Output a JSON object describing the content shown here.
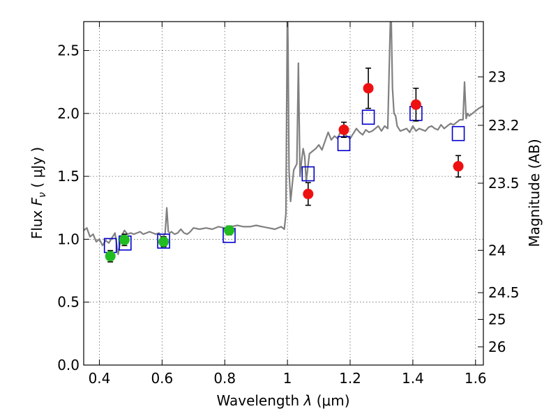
{
  "chart_data": {
    "type": "scatter",
    "xlabel_prefix": "Wavelength",
    "xlabel_symbol": "λ",
    "xlabel_unit": "(μm)",
    "ylabel_prefix": "Flux",
    "ylabel_symbol": "F",
    "ylabel_subscript": "ν",
    "ylabel_unit": "( μJy )",
    "y2label": "Magnitude (AB)",
    "xlim": [
      0.35,
      1.625
    ],
    "ylim": [
      0.0,
      2.73
    ],
    "grid": true,
    "x_ticks": [
      0.4,
      0.6,
      0.8,
      1.0,
      1.2,
      1.4,
      1.6
    ],
    "x_tick_labels": [
      "0.4",
      "0.6",
      "0.8",
      "1",
      "1.2",
      "1.4",
      "1.6"
    ],
    "y_ticks": [
      0.0,
      0.5,
      1.0,
      1.5,
      2.0,
      2.5
    ],
    "y_tick_labels": [
      "0.0",
      "0.5",
      "1.0",
      "1.5",
      "2.0",
      "2.5"
    ],
    "y2_ticks": [
      23,
      23.2,
      23.5,
      24,
      24.5,
      25,
      26
    ],
    "y2_tick_labels": [
      "23",
      "23.2",
      "23.5",
      "24",
      "24.5",
      "25",
      "26"
    ],
    "colors": {
      "spectrum": "#808080",
      "model": "#0000cc",
      "green_points": "#22bb22",
      "red_points": "#ee1111",
      "errorbar": "#000000"
    },
    "series": [
      {
        "kind": "line",
        "x": [
          0.35,
          0.36,
          0.37,
          0.38,
          0.39,
          0.4,
          0.41,
          0.42,
          0.43,
          0.44,
          0.45,
          0.46,
          0.47,
          0.48,
          0.49,
          0.5,
          0.51,
          0.52,
          0.53,
          0.54,
          0.55,
          0.56,
          0.57,
          0.58,
          0.59,
          0.6,
          0.61,
          0.615,
          0.62,
          0.625,
          0.63,
          0.64,
          0.65,
          0.66,
          0.67,
          0.68,
          0.69,
          0.7,
          0.72,
          0.74,
          0.76,
          0.78,
          0.8,
          0.82,
          0.84,
          0.86,
          0.88,
          0.9,
          0.92,
          0.94,
          0.96,
          0.98,
          0.99,
          0.995,
          1.0,
          1.002,
          1.005,
          1.01,
          1.02,
          1.03,
          1.035,
          1.04,
          1.045,
          1.05,
          1.055,
          1.06,
          1.07,
          1.08,
          1.09,
          1.1,
          1.11,
          1.12,
          1.13,
          1.14,
          1.15,
          1.16,
          1.17,
          1.18,
          1.19,
          1.2,
          1.21,
          1.22,
          1.23,
          1.24,
          1.25,
          1.26,
          1.27,
          1.28,
          1.29,
          1.3,
          1.31,
          1.32,
          1.33,
          1.335,
          1.34,
          1.345,
          1.35,
          1.36,
          1.37,
          1.38,
          1.39,
          1.4,
          1.41,
          1.42,
          1.43,
          1.44,
          1.45,
          1.46,
          1.47,
          1.48,
          1.49,
          1.5,
          1.51,
          1.52,
          1.53,
          1.54,
          1.55,
          1.56,
          1.565,
          1.57,
          1.575,
          1.58,
          1.59,
          1.6,
          1.61,
          1.625
        ],
        "y": [
          1.07,
          1.09,
          1.02,
          1.04,
          0.98,
          1.0,
          0.95,
          0.99,
          0.97,
          1.01,
          1.05,
          0.88,
          1.02,
          1.07,
          1.04,
          1.05,
          1.04,
          1.05,
          1.06,
          1.04,
          1.05,
          1.06,
          1.05,
          1.04,
          1.05,
          1.0,
          1.05,
          1.25,
          1.06,
          1.05,
          1.06,
          1.04,
          1.05,
          1.08,
          1.05,
          1.04,
          1.06,
          1.09,
          1.08,
          1.09,
          1.08,
          1.1,
          1.09,
          1.1,
          1.11,
          1.1,
          1.1,
          1.11,
          1.1,
          1.09,
          1.08,
          1.1,
          1.08,
          1.2,
          2.9,
          2.5,
          1.55,
          1.3,
          1.55,
          1.6,
          2.4,
          1.5,
          1.62,
          1.72,
          1.66,
          1.46,
          1.68,
          1.7,
          1.72,
          1.75,
          1.71,
          1.78,
          1.85,
          1.79,
          1.82,
          1.8,
          1.86,
          1.84,
          1.82,
          1.8,
          1.84,
          1.88,
          1.85,
          1.83,
          1.87,
          1.85,
          1.86,
          1.88,
          1.9,
          1.86,
          1.9,
          1.88,
          2.9,
          2.2,
          2.0,
          1.98,
          1.9,
          1.86,
          1.87,
          1.88,
          1.85,
          1.9,
          1.86,
          1.88,
          1.87,
          1.86,
          1.89,
          1.9,
          1.88,
          1.87,
          1.91,
          1.88,
          1.9,
          1.92,
          1.91,
          1.93,
          1.95,
          1.95,
          2.25,
          1.96,
          2.0,
          1.98,
          2.0,
          2.02,
          2.04,
          2.06
        ]
      },
      {
        "kind": "model-squares",
        "x": [
          0.435,
          0.482,
          0.605,
          0.814,
          1.066,
          1.18,
          1.258,
          1.41,
          1.545
        ],
        "y": [
          0.95,
          0.97,
          0.985,
          1.03,
          1.52,
          1.76,
          1.97,
          2.0,
          1.84
        ]
      },
      {
        "kind": "points-green",
        "x": [
          0.435,
          0.48,
          0.605,
          0.814
        ],
        "y": [
          0.865,
          0.995,
          0.98,
          1.07
        ],
        "yerr": [
          0.045,
          0.045,
          0.04,
          0.035
        ]
      },
      {
        "kind": "points-red",
        "x": [
          1.066,
          1.18,
          1.258,
          1.41,
          1.545
        ],
        "y": [
          1.36,
          1.87,
          2.2,
          2.07,
          1.58
        ],
        "yerr": [
          0.09,
          0.06,
          0.16,
          0.13,
          0.085
        ]
      }
    ]
  }
}
